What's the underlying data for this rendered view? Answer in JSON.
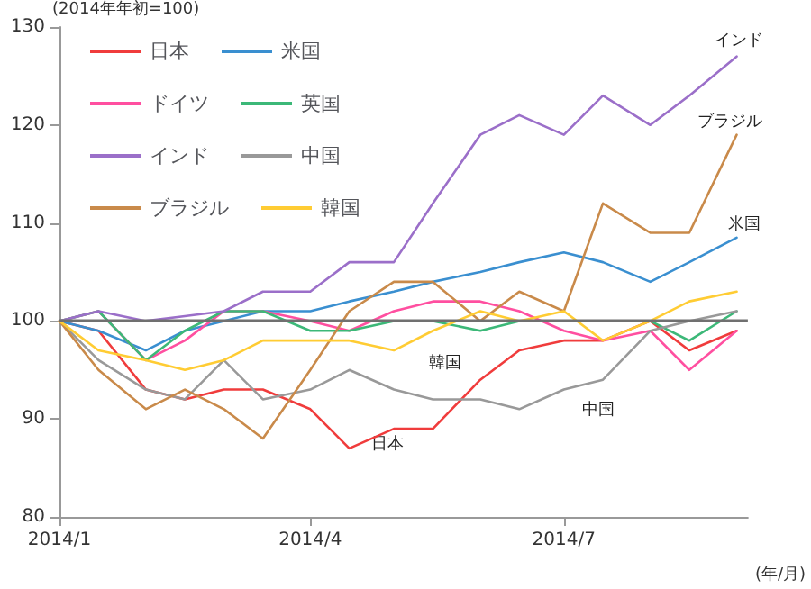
{
  "chart_data": {
    "type": "line",
    "ylabel": "(2014年年初=100)",
    "xlabel": "(年/月)",
    "x": [
      "2014-01-01",
      "2014-01-15",
      "2014-02-01",
      "2014-02-15",
      "2014-03-01",
      "2014-03-15",
      "2014-04-01",
      "2014-04-15",
      "2014-05-01",
      "2014-05-15",
      "2014-06-01",
      "2014-06-15",
      "2014-07-01",
      "2014-07-15",
      "2014-08-01",
      "2014-08-15",
      "2014-09-01"
    ],
    "series": [
      {
        "name": "日本",
        "color": "#f03c3c",
        "values": [
          100,
          99,
          93,
          92,
          93,
          93,
          91,
          87,
          89,
          89,
          94,
          97,
          98,
          98,
          100,
          97,
          99
        ]
      },
      {
        "name": "米国",
        "color": "#3a8fd0",
        "values": [
          100,
          99,
          97,
          99,
          100,
          101,
          101,
          102,
          103,
          104,
          105,
          106,
          107,
          106,
          104,
          106,
          108.5
        ]
      },
      {
        "name": "ドイツ",
        "color": "#ff4fa0",
        "values": [
          100,
          101,
          96,
          98,
          101,
          101,
          100,
          99,
          101,
          102,
          102,
          101,
          99,
          98,
          99,
          95,
          99
        ]
      },
      {
        "name": "英国",
        "color": "#3cb878",
        "values": [
          100,
          101,
          96,
          99,
          101,
          101,
          99,
          99,
          100,
          100,
          99,
          100,
          100,
          100,
          100,
          98,
          101
        ]
      },
      {
        "name": "インド",
        "color": "#9b6fc9",
        "values": [
          100,
          101,
          100,
          100.5,
          101,
          103,
          103,
          106,
          106,
          112,
          119,
          121,
          119,
          123,
          120,
          123,
          127
        ]
      },
      {
        "name": "中国",
        "color": "#999999",
        "values": [
          100,
          96,
          93,
          92,
          96,
          92,
          93,
          95,
          93,
          92,
          92,
          91,
          93,
          94,
          99,
          100,
          101
        ]
      },
      {
        "name": "ブラジル",
        "color": "#c98a4a",
        "values": [
          100,
          95,
          91,
          93,
          91,
          88,
          95,
          101,
          104,
          104,
          100,
          103,
          101,
          112,
          109,
          109,
          119
        ]
      },
      {
        "name": "韓国",
        "color": "#ffcc33",
        "values": [
          100,
          97,
          96,
          95,
          96,
          98,
          98,
          98,
          97,
          99,
          101,
          100,
          101,
          98,
          100,
          102,
          103
        ]
      }
    ],
    "xlim": [
      "2014-01-01",
      "2014-09-05"
    ],
    "xticks": [
      {
        "value": "2014-01-01",
        "label": "2014/1"
      },
      {
        "value": "2014-04-01",
        "label": "2014/4"
      },
      {
        "value": "2014-07-01",
        "label": "2014/7"
      }
    ],
    "ylim": [
      80,
      130
    ],
    "yticks": [
      80,
      90,
      100,
      110,
      120,
      130
    ],
    "ref_lines": [
      {
        "axis": "y",
        "value": 100,
        "color": "#707070"
      }
    ],
    "annotations": [
      "インド",
      "ブラジル",
      "米国",
      "韓国",
      "中国",
      "日本"
    ],
    "legend": "top left",
    "grid": false,
    "marker": "none",
    "line_style": "solid"
  }
}
